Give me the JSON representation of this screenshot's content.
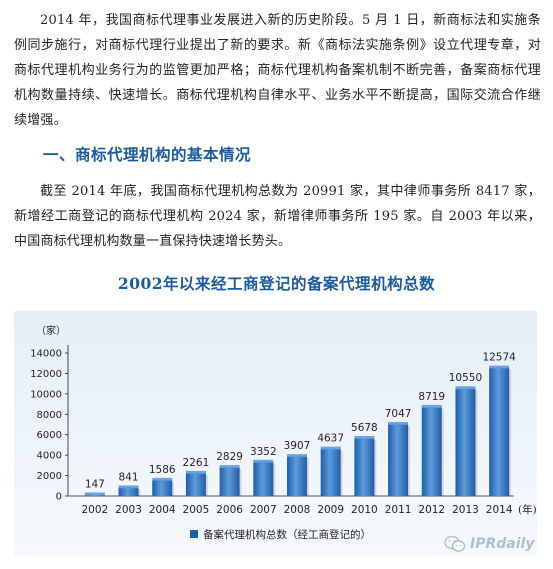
{
  "article": {
    "para1": "2014 年，我国商标代理事业发展进入新的历史阶段。5 月 1 日，新商标法和实施条例同步施行，对商标代理行业提出了新的要求。新《商标法实施条例》设立代理专章，对商标代理机构业务行为的监管更加严格；商标代理机构备案机制不断完善，备案商标代理机构数量持续、快速增长。商标代理机构自律水平、业务水平不断提高，国际交流合作继续增强。",
    "section_heading": "一、商标代理机构的基本情况",
    "para2": "截至 2014 年底，我国商标代理机构总数为 20991 家，其中律师事务所 8417 家，新增经工商登记的商标代理机构 2024 家，新增律师事务所 195 家。自 2003 年以来，中国商标代理机构数量一直保持快速增长势头。"
  },
  "chart_data": {
    "type": "bar",
    "title": "2002年以来经工商登记的备案代理机构总数",
    "y_unit_label": "（家）",
    "x_unit_label": "(年)",
    "categories": [
      "2002",
      "2003",
      "2004",
      "2005",
      "2006",
      "2007",
      "2008",
      "2009",
      "2010",
      "2011",
      "2012",
      "2013",
      "2014"
    ],
    "series": [
      {
        "name": "备案代理机构总数（经工商登记的）",
        "values": [
          147,
          841,
          1586,
          2261,
          2829,
          3352,
          3907,
          4637,
          5678,
          7047,
          8719,
          10550,
          12574
        ]
      }
    ],
    "ylim": [
      0,
      14000
    ],
    "yticks": [
      0,
      2000,
      4000,
      6000,
      8000,
      10000,
      12000,
      14000
    ],
    "grid": false,
    "legend_position": "bottom-center",
    "bar_color": "#1f5ea8",
    "bar_highlight_color": "#5e9bdb"
  },
  "watermark": {
    "text": "IPRdaily",
    "icon": "wechat-icon"
  }
}
